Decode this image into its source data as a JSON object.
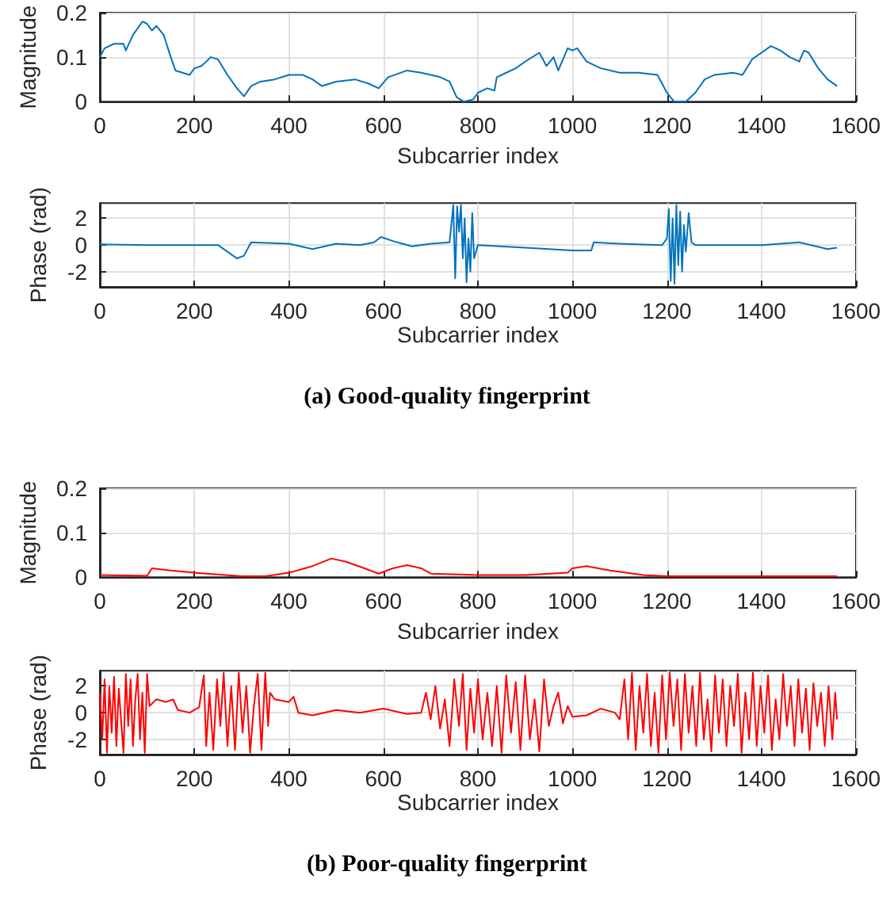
{
  "chart_data": [
    {
      "type": "line",
      "xlabel": "Subcarrier index",
      "ylabel": "Magnitude",
      "color": "#0072bd",
      "xlim": [
        0,
        1600
      ],
      "xticks": [
        0,
        200,
        400,
        600,
        800,
        1000,
        1200,
        1400,
        1600
      ],
      "ylim": [
        0,
        0.2
      ],
      "yticks": [
        0,
        0.1,
        0.2
      ],
      "grid": true,
      "x": [
        0,
        10,
        30,
        50,
        55,
        70,
        90,
        100,
        110,
        120,
        135,
        150,
        160,
        175,
        190,
        200,
        215,
        235,
        250,
        270,
        290,
        305,
        320,
        340,
        370,
        400,
        430,
        450,
        470,
        500,
        540,
        570,
        590,
        610,
        650,
        680,
        720,
        740,
        755,
        770,
        790,
        800,
        820,
        835,
        840,
        860,
        880,
        900,
        930,
        945,
        960,
        970,
        990,
        1000,
        1010,
        1030,
        1060,
        1100,
        1140,
        1180,
        1200,
        1215,
        1240,
        1260,
        1280,
        1300,
        1340,
        1360,
        1380,
        1400,
        1420,
        1440,
        1460,
        1480,
        1490,
        1500,
        1520,
        1540,
        1560
      ],
      "values": [
        0.1,
        0.12,
        0.13,
        0.13,
        0.115,
        0.15,
        0.18,
        0.175,
        0.16,
        0.17,
        0.15,
        0.1,
        0.07,
        0.065,
        0.06,
        0.075,
        0.08,
        0.1,
        0.095,
        0.06,
        0.03,
        0.012,
        0.035,
        0.045,
        0.05,
        0.06,
        0.06,
        0.05,
        0.035,
        0.045,
        0.05,
        0.04,
        0.03,
        0.055,
        0.07,
        0.065,
        0.055,
        0.045,
        0.01,
        0.0,
        0.005,
        0.02,
        0.03,
        0.025,
        0.055,
        0.065,
        0.075,
        0.09,
        0.11,
        0.08,
        0.1,
        0.07,
        0.12,
        0.115,
        0.12,
        0.09,
        0.075,
        0.065,
        0.065,
        0.06,
        0.02,
        0.0,
        0.0,
        0.02,
        0.05,
        0.06,
        0.065,
        0.06,
        0.095,
        0.11,
        0.125,
        0.115,
        0.1,
        0.09,
        0.115,
        0.11,
        0.075,
        0.05,
        0.035
      ]
    },
    {
      "type": "line",
      "xlabel": "Subcarrier index",
      "ylabel": "Phase (rad)",
      "color": "#0072bd",
      "xlim": [
        0,
        1600
      ],
      "xticks": [
        0,
        200,
        400,
        600,
        800,
        1000,
        1200,
        1400,
        1600
      ],
      "ylim": [
        -3.14,
        3.14
      ],
      "yticks": [
        -2,
        0,
        2
      ],
      "grid": true,
      "annotations": [
        "(a) Good-quality fingerprint"
      ],
      "x": [
        0,
        100,
        200,
        250,
        270,
        290,
        305,
        320,
        400,
        450,
        500,
        550,
        580,
        595,
        620,
        660,
        700,
        740,
        748,
        752,
        756,
        760,
        764,
        768,
        772,
        776,
        780,
        784,
        788,
        792,
        796,
        800,
        900,
        1000,
        1040,
        1045,
        1100,
        1190,
        1200,
        1204,
        1208,
        1212,
        1216,
        1220,
        1224,
        1228,
        1232,
        1236,
        1240,
        1246,
        1252,
        1260,
        1350,
        1400,
        1480,
        1540,
        1560
      ],
      "values": [
        0.05,
        0.0,
        0.0,
        0.0,
        -0.5,
        -1.0,
        -0.8,
        0.2,
        0.1,
        -0.3,
        0.1,
        0.0,
        0.2,
        0.6,
        0.3,
        -0.1,
        0.1,
        0.2,
        3.0,
        -2.5,
        2.9,
        1.0,
        3.0,
        -1.0,
        2.0,
        -2.8,
        0.5,
        -2.0,
        2.4,
        -1.0,
        -0.5,
        0.0,
        -0.2,
        -0.4,
        -0.4,
        0.2,
        0.1,
        0.0,
        0.5,
        2.7,
        -2.7,
        2.0,
        -2.9,
        3.0,
        -1.5,
        2.5,
        -2.0,
        1.5,
        -0.5,
        2.4,
        0.2,
        0.0,
        0.0,
        0.0,
        0.2,
        -0.3,
        -0.2
      ]
    },
    {
      "type": "line",
      "xlabel": "Subcarrier index",
      "ylabel": "Magnitude",
      "color": "#ff0000",
      "xlim": [
        0,
        1600
      ],
      "xticks": [
        0,
        200,
        400,
        600,
        800,
        1000,
        1200,
        1400,
        1600
      ],
      "ylim": [
        0,
        0.2
      ],
      "yticks": [
        0,
        0.1,
        0.2
      ],
      "grid": true,
      "x": [
        0,
        100,
        110,
        150,
        200,
        300,
        350,
        400,
        450,
        490,
        520,
        560,
        590,
        620,
        650,
        680,
        700,
        800,
        900,
        990,
        1000,
        1030,
        1080,
        1150,
        1200,
        1560
      ],
      "values": [
        0.005,
        0.003,
        0.02,
        0.015,
        0.01,
        0.002,
        0.002,
        0.01,
        0.025,
        0.042,
        0.035,
        0.02,
        0.008,
        0.02,
        0.027,
        0.02,
        0.008,
        0.005,
        0.005,
        0.01,
        0.02,
        0.025,
        0.015,
        0.005,
        0.002,
        0.002
      ]
    },
    {
      "type": "line",
      "xlabel": "Subcarrier index",
      "ylabel": "Phase (rad)",
      "color": "#ff0000",
      "xlim": [
        0,
        1600
      ],
      "xticks": [
        0,
        200,
        400,
        600,
        800,
        1000,
        1200,
        1400,
        1600
      ],
      "ylim": [
        -3.14,
        3.14
      ],
      "yticks": [
        -2,
        0,
        2
      ],
      "grid": true,
      "annotations": [
        "(b) Poor-quality fingerprint"
      ],
      "x": [
        0,
        5,
        10,
        15,
        20,
        25,
        30,
        35,
        40,
        50,
        55,
        60,
        65,
        70,
        75,
        80,
        85,
        90,
        95,
        100,
        105,
        120,
        140,
        155,
        165,
        190,
        210,
        220,
        225,
        232,
        240,
        248,
        255,
        262,
        270,
        278,
        286,
        294,
        302,
        310,
        318,
        326,
        334,
        342,
        350,
        356,
        360,
        370,
        400,
        410,
        420,
        450,
        500,
        550,
        600,
        650,
        680,
        690,
        700,
        710,
        720,
        730,
        740,
        750,
        760,
        768,
        776,
        784,
        792,
        800,
        810,
        820,
        830,
        840,
        850,
        860,
        870,
        880,
        890,
        900,
        910,
        920,
        930,
        940,
        950,
        960,
        970,
        980,
        990,
        1000,
        1030,
        1060,
        1090,
        1100,
        1110,
        1118,
        1126,
        1134,
        1142,
        1150,
        1158,
        1166,
        1174,
        1182,
        1190,
        1198,
        1206,
        1214,
        1222,
        1230,
        1238,
        1246,
        1254,
        1262,
        1270,
        1278,
        1286,
        1294,
        1302,
        1310,
        1318,
        1326,
        1334,
        1342,
        1350,
        1358,
        1366,
        1374,
        1382,
        1390,
        1398,
        1406,
        1414,
        1422,
        1430,
        1438,
        1446,
        1454,
        1462,
        1470,
        1478,
        1486,
        1494,
        1502,
        1510,
        1518,
        1526,
        1534,
        1542,
        1550,
        1556,
        1560
      ],
      "values": [
        1.5,
        -2,
        2.5,
        -3,
        2,
        -1.5,
        2.7,
        -2.5,
        1.8,
        -3,
        2.9,
        -1,
        2.5,
        -2.5,
        1,
        2.9,
        -2,
        1.5,
        -3,
        2.9,
        0.5,
        1.0,
        0.8,
        1.0,
        0.2,
        0.0,
        0.4,
        2.8,
        -2.5,
        1.5,
        -2.8,
        2.5,
        -1,
        3,
        -2.5,
        2,
        -2.8,
        3,
        -1.5,
        2,
        -3,
        0.5,
        2.9,
        -2.8,
        3,
        -1,
        1.5,
        1.0,
        0.8,
        1.2,
        0.0,
        -0.2,
        0.2,
        0.0,
        0.3,
        -0.1,
        0.0,
        1.5,
        -0.5,
        2.0,
        -1.2,
        1.0,
        -2.5,
        2.5,
        -1.0,
        2.9,
        -2.8,
        1.8,
        -1.5,
        2.5,
        -2.0,
        1.5,
        -2.5,
        2.0,
        -3.0,
        2.8,
        -1.5,
        2.3,
        -2.8,
        2.8,
        -2.0,
        1.0,
        -2.9,
        2.5,
        -1.0,
        0.5,
        1.5,
        -0.8,
        0.5,
        -0.3,
        -0.2,
        0.3,
        0.0,
        -0.5,
        2.5,
        -2.0,
        3.0,
        -2.8,
        2.0,
        -1.5,
        2.9,
        -2.5,
        1.5,
        -3.0,
        2.8,
        -2.0,
        3.0,
        -1.0,
        2.5,
        -2.8,
        2.9,
        -1.5,
        2.0,
        -2.5,
        3.0,
        -2.0,
        1.0,
        -2.9,
        2.8,
        -1.5,
        2.5,
        -2.5,
        2.0,
        -1.0,
        2.9,
        -3.0,
        1.5,
        -2.0,
        3.0,
        -2.5,
        2.0,
        -1.5,
        2.8,
        -2.8,
        1.0,
        -2.0,
        2.9,
        -1.0,
        2.0,
        -2.5,
        2.5,
        -1.5,
        1.8,
        -2.8,
        2.2,
        -1.0,
        1.5,
        -2.5,
        2.0,
        -2.0,
        1.5,
        -0.5
      ]
    }
  ]
}
